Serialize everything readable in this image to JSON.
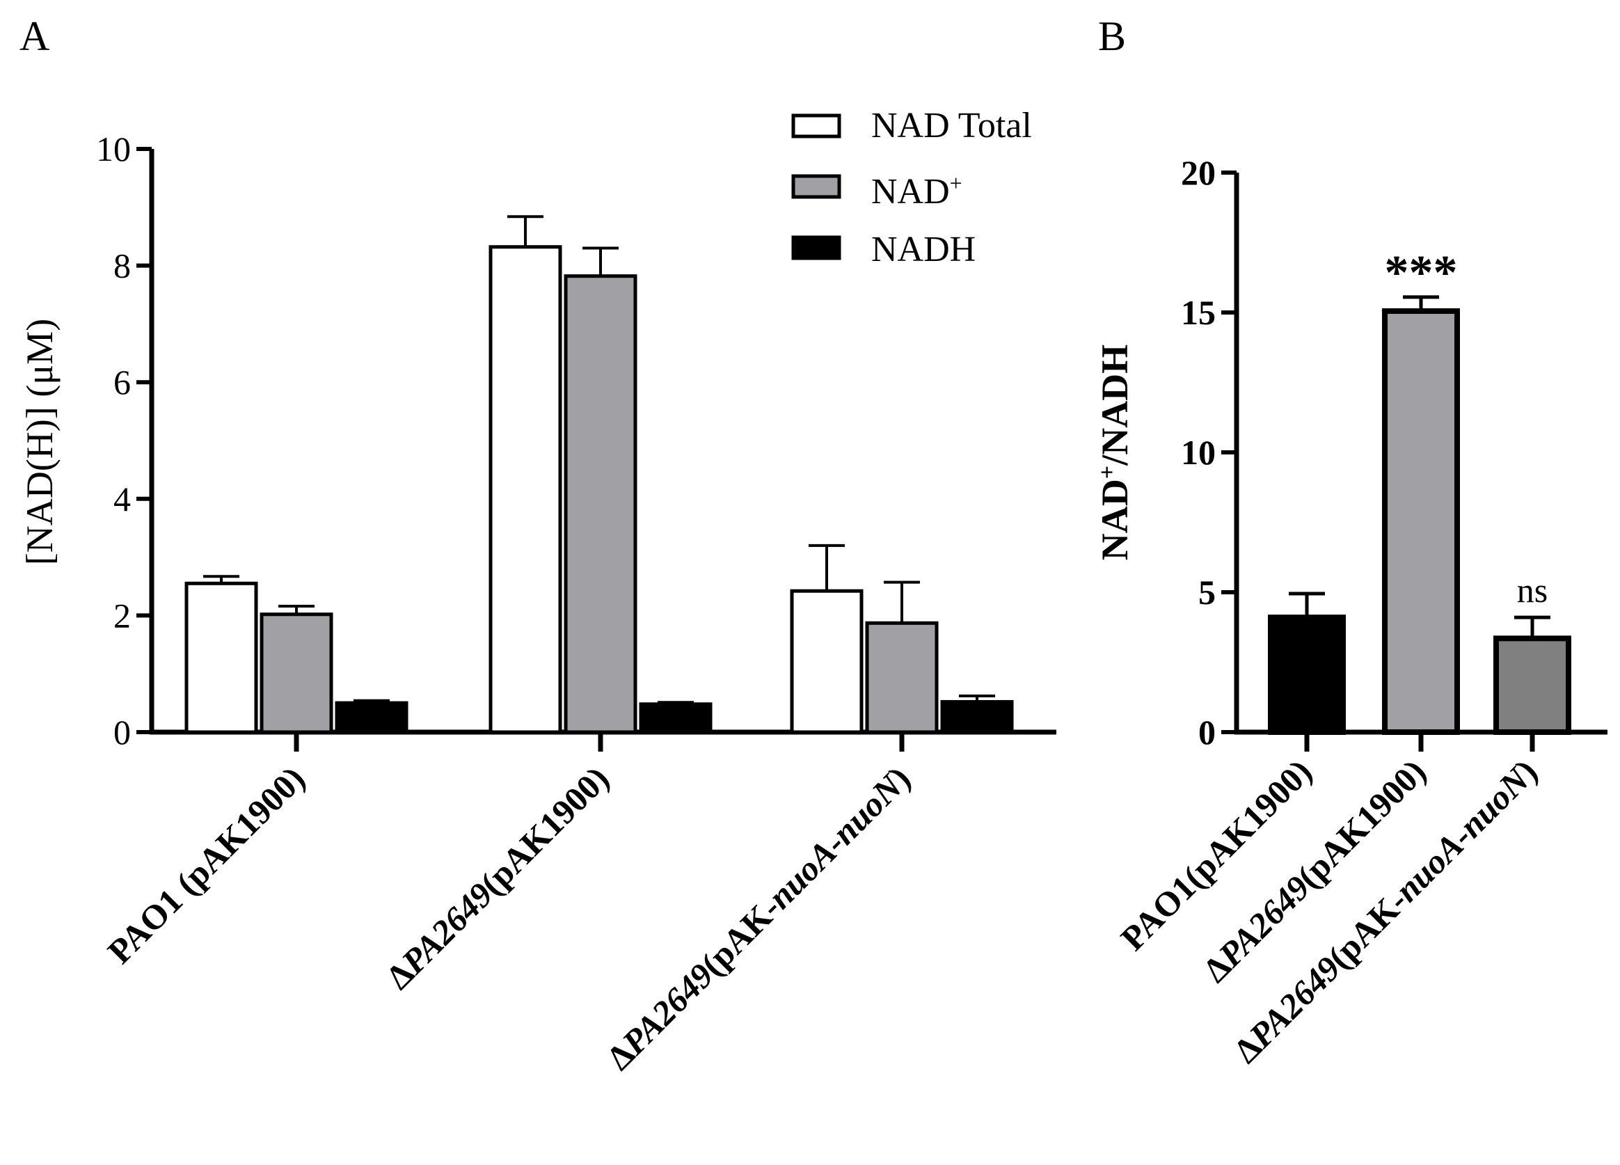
{
  "chart_data": [
    {
      "panel": "A",
      "type": "bar",
      "ylabel": "[NAD(H)] (μM)",
      "ylim": [
        0,
        10
      ],
      "yticks": [
        0,
        2,
        4,
        6,
        8,
        10
      ],
      "categories": [
        {
          "pre": "",
          "it": "",
          "post": "PAO1 (pAK1900)"
        },
        {
          "pre": "Δ",
          "it": "PA2649",
          "post": "(pAK1900)"
        },
        {
          "pre": "Δ",
          "it": "PA2649",
          "post": "(pAK-",
          "it2": "nuoA-nuoN",
          "post2": ")"
        }
      ],
      "series": [
        {
          "name": "NAD Total",
          "color": "#ffffff",
          "values": [
            2.55,
            8.32,
            2.42
          ],
          "errors": [
            0.12,
            0.52,
            0.78
          ]
        },
        {
          "name": "NAD",
          "name_sup": "+",
          "color": "#a0a0a5",
          "values": [
            2.02,
            7.82,
            1.87
          ],
          "errors": [
            0.14,
            0.48,
            0.7
          ]
        },
        {
          "name": "NADH",
          "color": "#000000",
          "values": [
            0.5,
            0.48,
            0.52
          ],
          "errors": [
            0.04,
            0.03,
            0.1
          ]
        }
      ]
    },
    {
      "panel": "B",
      "type": "bar",
      "ylabel": "NAD",
      "ylabel_sup": "+",
      "ylabel_post": "/NADH",
      "ylim": [
        0,
        20
      ],
      "yticks": [
        0,
        5,
        10,
        15,
        20
      ],
      "categories": [
        {
          "pre": "",
          "it": "",
          "post": "PAO1(pAK1900)"
        },
        {
          "pre": "Δ",
          "it": "PA2649",
          "post": "(pAK1900)"
        },
        {
          "pre": "Δ",
          "it": "PA2649",
          "post": "(pAK-",
          "it2": "nuoA-nuoN",
          "post2": ")"
        }
      ],
      "values": [
        4.1,
        15.05,
        3.35
      ],
      "errors": [
        0.85,
        0.5,
        0.75
      ],
      "colors": [
        "#000000",
        "#a0a0a5",
        "#808080"
      ],
      "annotations": [
        "",
        "***",
        "ns"
      ]
    }
  ]
}
